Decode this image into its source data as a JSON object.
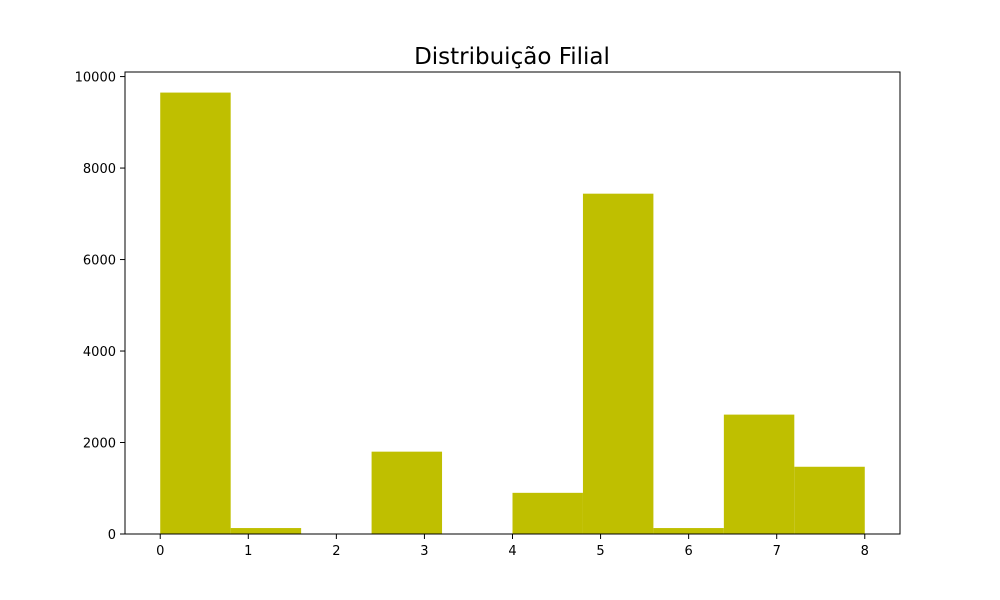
{
  "chart_data": {
    "type": "bar",
    "title": "Distribuição Filial",
    "xlabel": "",
    "ylabel": "",
    "bar_color": "#bfbf00",
    "xlim": [
      -0.4,
      8.4
    ],
    "ylim": [
      0,
      10100
    ],
    "x_ticks": [
      0,
      1,
      2,
      3,
      4,
      5,
      6,
      7,
      8
    ],
    "y_ticks": [
      0,
      2000,
      4000,
      6000,
      8000,
      10000
    ],
    "bins": [
      {
        "start": 0.0,
        "end": 0.8,
        "value": 9650
      },
      {
        "start": 0.8,
        "end": 1.6,
        "value": 130
      },
      {
        "start": 1.6,
        "end": 2.4,
        "value": 0
      },
      {
        "start": 2.4,
        "end": 3.2,
        "value": 1800
      },
      {
        "start": 3.2,
        "end": 4.0,
        "value": 0
      },
      {
        "start": 4.0,
        "end": 4.8,
        "value": 900
      },
      {
        "start": 4.8,
        "end": 5.6,
        "value": 7440
      },
      {
        "start": 5.6,
        "end": 6.4,
        "value": 130
      },
      {
        "start": 6.4,
        "end": 7.2,
        "value": 2610
      },
      {
        "start": 7.2,
        "end": 8.0,
        "value": 1470
      }
    ],
    "grid": false,
    "legend": "none"
  }
}
